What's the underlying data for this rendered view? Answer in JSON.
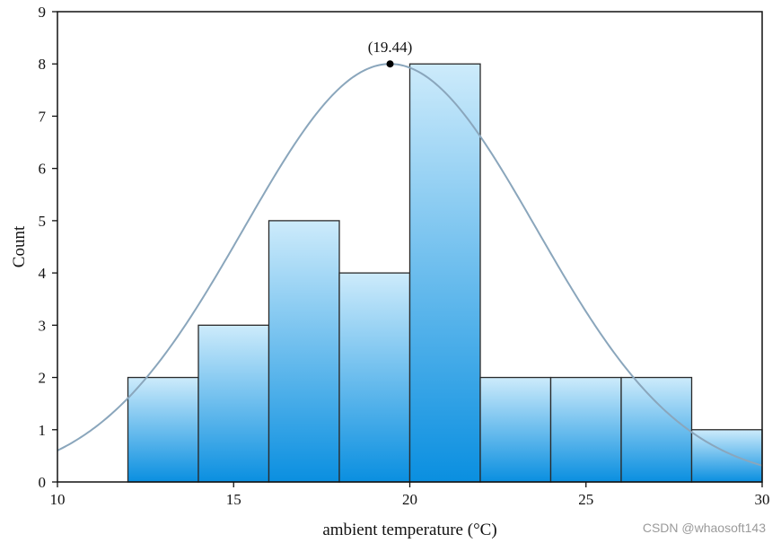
{
  "chart_data": {
    "type": "bar",
    "subtype": "histogram_with_fit",
    "title": "",
    "xlabel": "ambient temperature (°C)",
    "ylabel": "Count",
    "xlim": [
      10,
      30
    ],
    "ylim": [
      0,
      9
    ],
    "x_ticks": [
      "10",
      "15",
      "20",
      "25",
      "30"
    ],
    "y_ticks": [
      "0",
      "1",
      "2",
      "3",
      "4",
      "5",
      "6",
      "7",
      "8",
      "9"
    ],
    "bins": [
      {
        "start": 12,
        "end": 14,
        "count": 2
      },
      {
        "start": 14,
        "end": 16,
        "count": 3
      },
      {
        "start": 16,
        "end": 18,
        "count": 5
      },
      {
        "start": 18,
        "end": 20,
        "count": 4
      },
      {
        "start": 20,
        "end": 22,
        "count": 8
      },
      {
        "start": 22,
        "end": 24,
        "count": 2
      },
      {
        "start": 24,
        "end": 26,
        "count": 2
      },
      {
        "start": 26,
        "end": 28,
        "count": 2
      },
      {
        "start": 28,
        "end": 30,
        "count": 1
      }
    ],
    "fit_curve": {
      "type": "normal",
      "peak_x": 19.44,
      "peak_y": 8,
      "sigma": 4.15
    },
    "peak_label": "(19.44)",
    "colors": {
      "bar_top": "#cdebfb",
      "bar_bottom": "#0a8fe0",
      "bar_stroke": "#2a2a2a",
      "curve": "#8aa6bc",
      "axis": "#111111"
    }
  },
  "watermark": "CSDN @whaosoft143"
}
